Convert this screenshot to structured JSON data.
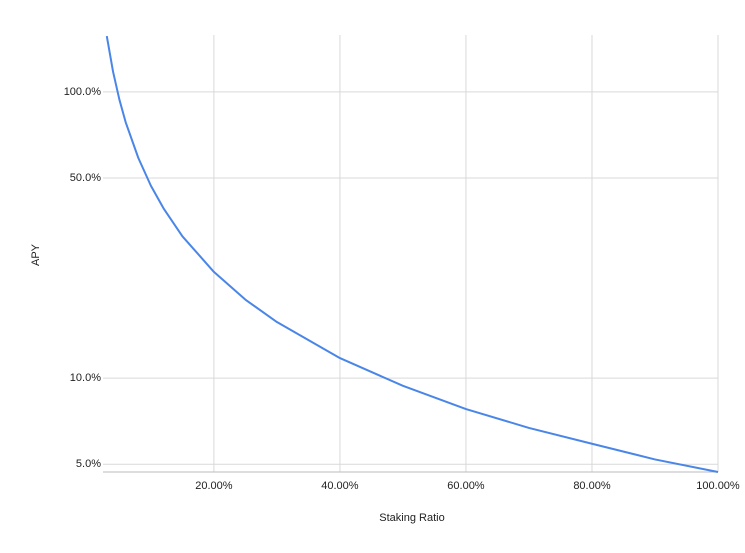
{
  "chart_data": {
    "type": "line",
    "x_label": "Staking Ratio",
    "y_label": "APY",
    "x": [
      3,
      4,
      5,
      6,
      8,
      10,
      12,
      15,
      20,
      25,
      30,
      40,
      50,
      60,
      70,
      80,
      90,
      100
    ],
    "series": [
      {
        "name": "APY",
        "color": "#4a86e8",
        "values": [
          156.7,
          117.5,
          94,
          78.3,
          58.8,
          47,
          39.2,
          31.3,
          23.5,
          18.8,
          15.7,
          11.75,
          9.4,
          7.8,
          6.7,
          5.9,
          5.2,
          4.7
        ]
      }
    ],
    "xlim": [
      2.4,
      100
    ],
    "ylim": [
      4.7,
      158
    ],
    "y_scale": "log",
    "grid": true,
    "xticks": [
      {
        "value": 20,
        "label": "20.00%"
      },
      {
        "value": 40,
        "label": "40.00%"
      },
      {
        "value": 60,
        "label": "60.00%"
      },
      {
        "value": 80,
        "label": "80.00%"
      },
      {
        "value": 100,
        "label": "100.00%"
      }
    ],
    "yticks": [
      {
        "value": 5,
        "label": "5.0%"
      },
      {
        "value": 10,
        "label": "10.0%"
      },
      {
        "value": 50,
        "label": "50.0%"
      },
      {
        "value": 100,
        "label": "100.0%"
      }
    ]
  }
}
